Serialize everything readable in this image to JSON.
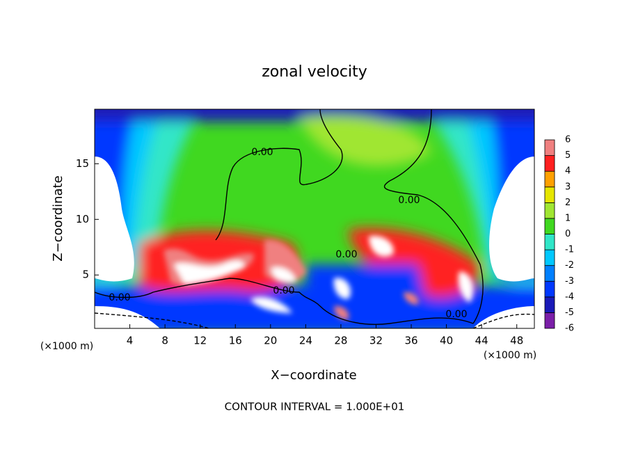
{
  "chart_data": {
    "type": "contour",
    "title": "zonal velocity",
    "xlabel": "X−coordinate",
    "ylabel": "Z−coordinate",
    "xunit": "(×1000 m)",
    "yunit": "(×1000 m)",
    "footer": "CONTOUR INTERVAL = 1.000E+01",
    "xlim": [
      0,
      50
    ],
    "xticks": [
      4,
      8,
      12,
      16,
      20,
      24,
      28,
      32,
      36,
      40,
      44,
      48
    ],
    "ylim": [
      0.2,
      19.9
    ],
    "yticks": [
      5,
      10,
      15
    ],
    "contour_labels": [
      "0.00",
      "0.00",
      "0.00",
      "0.00",
      "0.00",
      "0.00"
    ],
    "colorbar": {
      "ticks": [
        -6,
        -5,
        -4,
        -3,
        -2,
        -1,
        0,
        1,
        2,
        3,
        4,
        5,
        6
      ],
      "colors": [
        "#7b1fa8",
        "#1a1ab8",
        "#0038ff",
        "#0080ff",
        "#00c8ff",
        "#30e6c8",
        "#40d820",
        "#a0e632",
        "#e6e600",
        "#ffa000",
        "#ff2020",
        "#f08080"
      ]
    }
  }
}
